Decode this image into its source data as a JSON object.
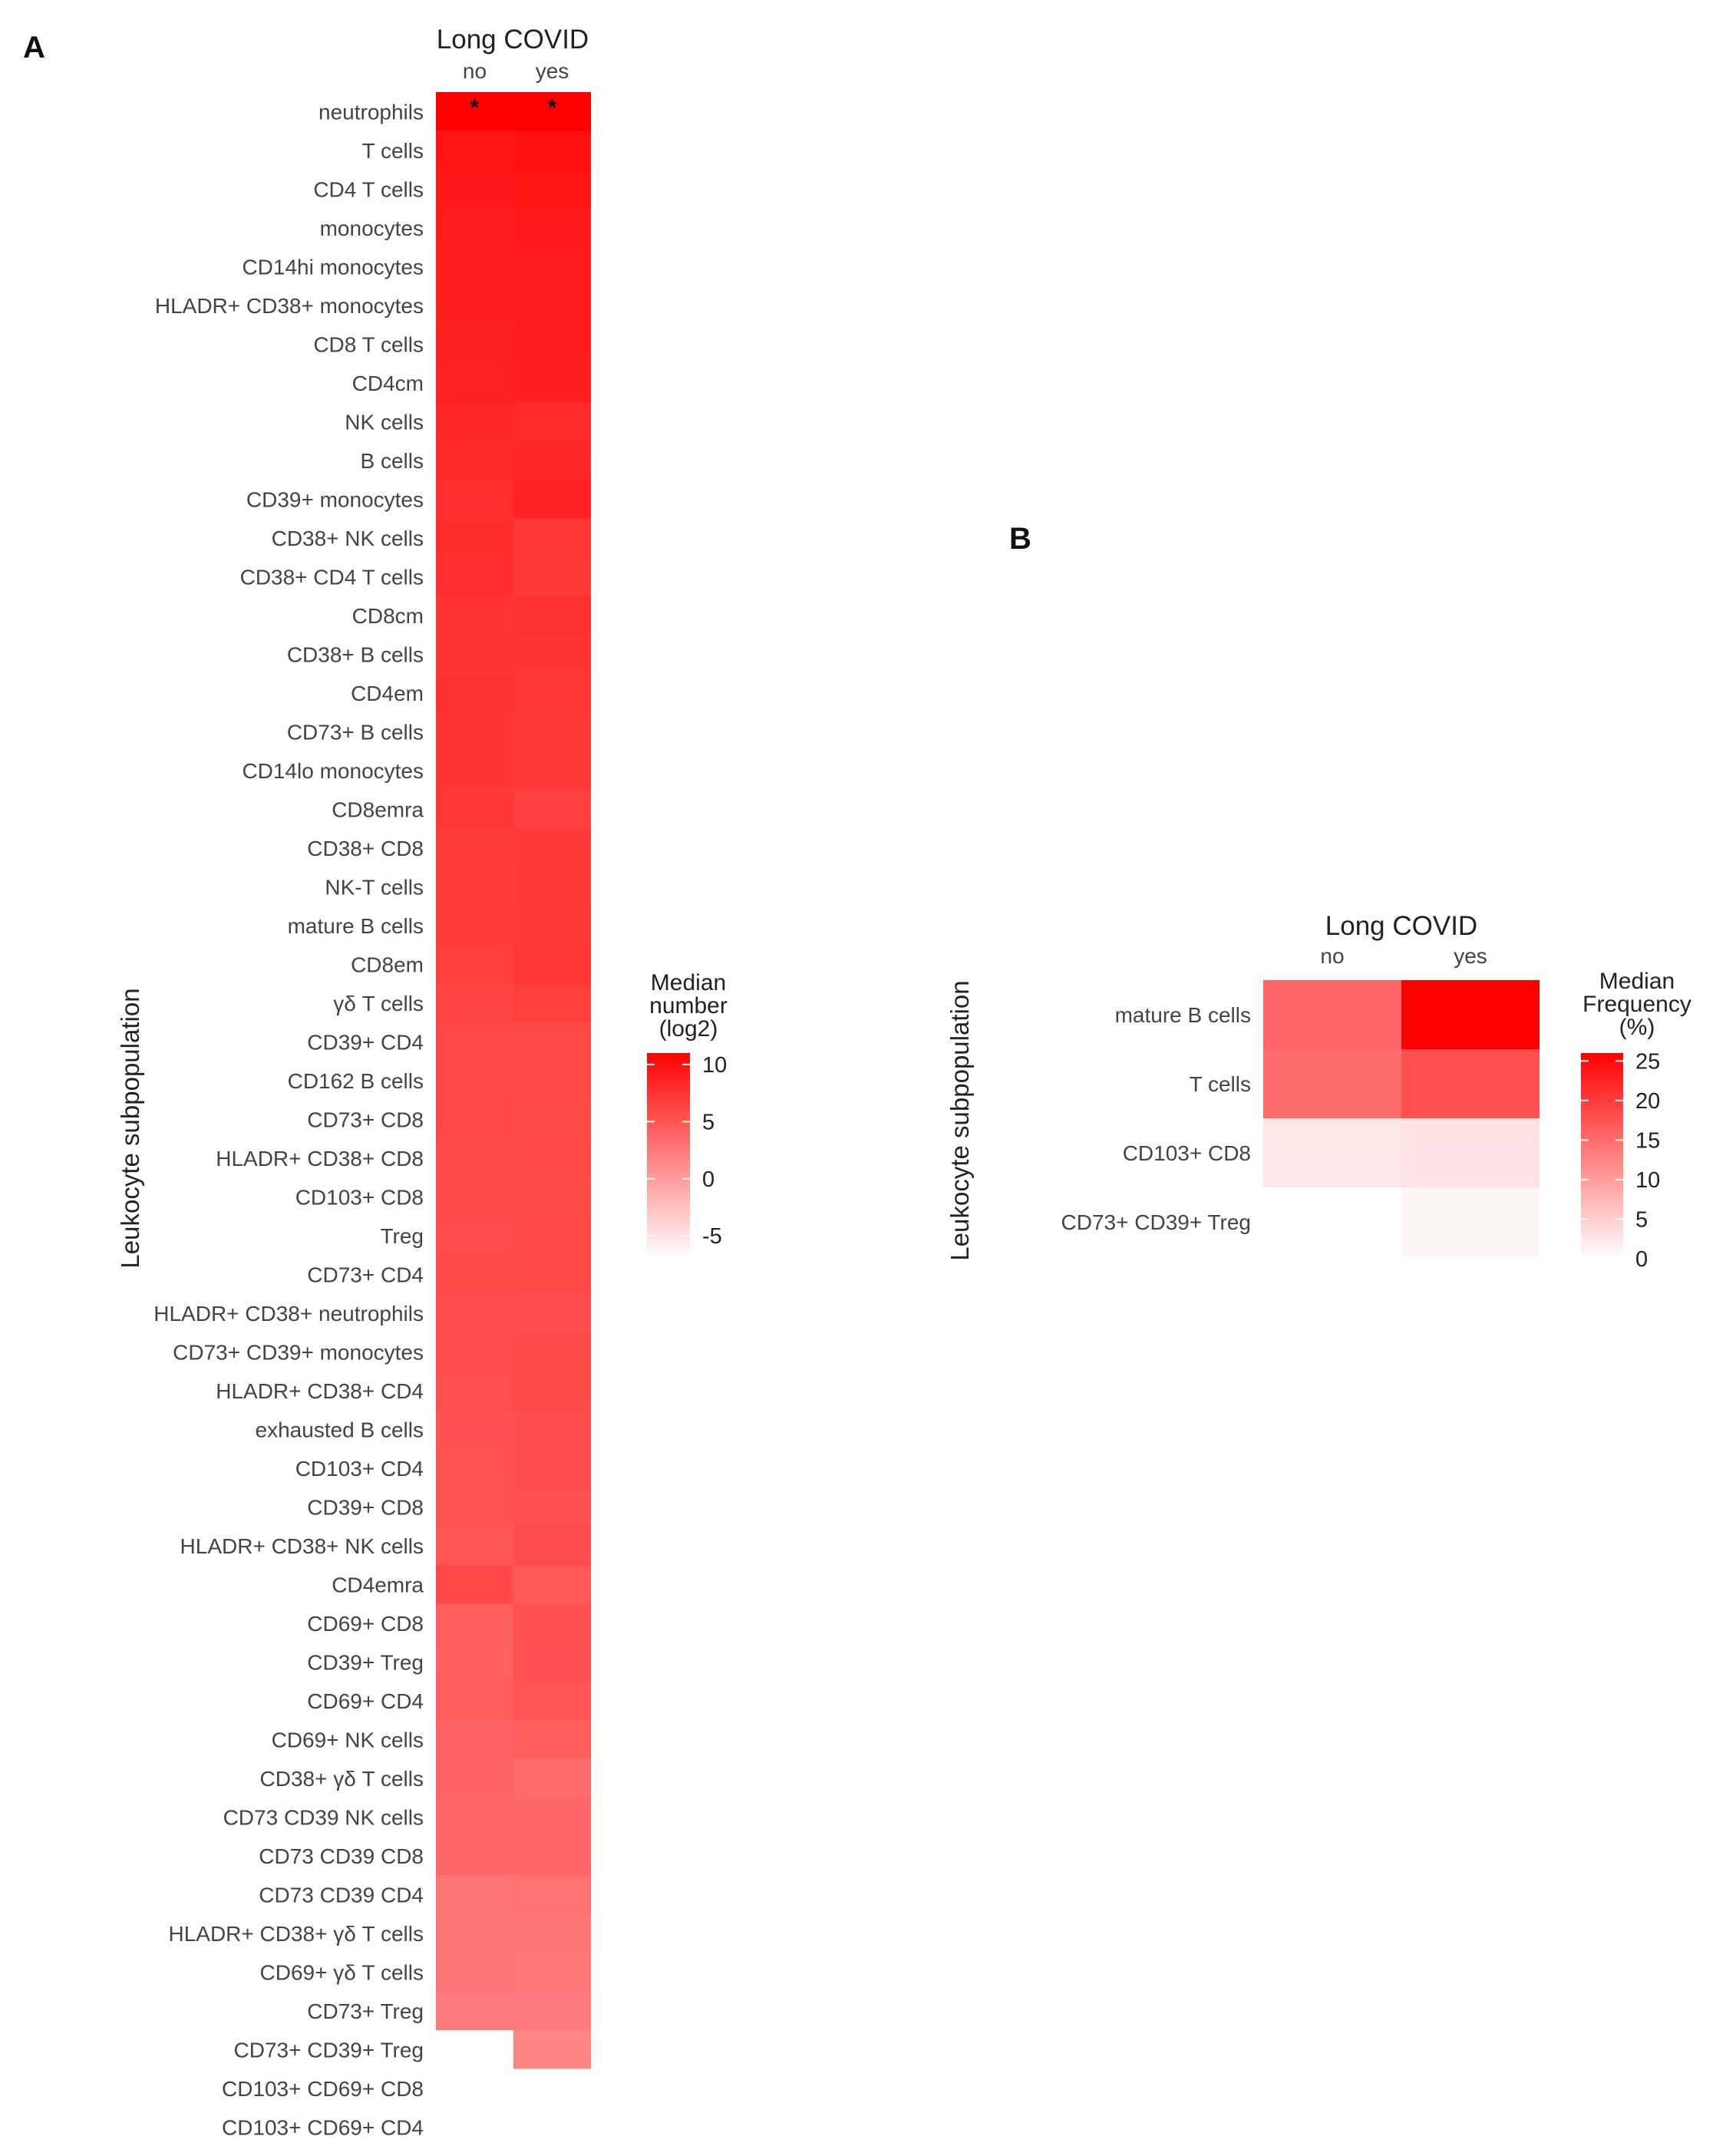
{
  "colors": {
    "low": "#ffffff",
    "high": "#ff0000"
  },
  "chart_data": [
    {
      "type": "heatmap",
      "panel": "A",
      "title": "Long COVID",
      "columns": [
        "no",
        "yes"
      ],
      "ylabel": "Leukocyte subpopulation",
      "legend": {
        "title": [
          "Median",
          "number",
          "(log2)"
        ],
        "min": -7,
        "max": 11,
        "ticks": [
          "10",
          "5",
          "0",
          "-5"
        ],
        "tick_values": [
          10,
          5,
          0,
          -5
        ]
      },
      "significance": [
        [
          "*",
          "*"
        ]
      ],
      "rows": [
        "neutrophils",
        "T cells",
        "CD4 T cells",
        "monocytes",
        "CD14hi monocytes",
        "HLADR+ CD38+ monocytes",
        "CD8 T cells",
        "CD4cm",
        "NK cells",
        "B cells",
        "CD39+ monocytes",
        "CD38+ NK cells",
        "CD38+ CD4 T cells",
        "CD8cm",
        "CD38+ B cells",
        "CD4em",
        "CD73+ B cells",
        "CD14lo monocytes",
        "CD8emra",
        "CD38+ CD8",
        "NK-T cells",
        "mature B cells",
        "CD8em",
        "γδ T cells",
        "CD39+ CD4",
        "CD162 B cells",
        "CD73+ CD8",
        "HLADR+ CD38+ CD8",
        "CD103+ CD8",
        "Treg",
        "CD73+ CD4",
        "HLADR+ CD38+ neutrophils",
        "CD73+ CD39+ monocytes",
        "HLADR+ CD38+ CD4",
        "exhausted B cells",
        "CD103+ CD4",
        "CD39+ CD8",
        "HLADR+ CD38+ NK cells",
        "CD4emra",
        "CD69+ CD8",
        "CD39+ Treg",
        "CD69+ CD4",
        "CD69+ NK cells",
        "CD38+ γδ T cells",
        "CD73 CD39 NK cells",
        "CD73 CD39 CD8",
        "CD73 CD39 CD4",
        "HLADR+ CD38+ γδ T cells",
        "CD69+ γδ T cells",
        "CD73+ Treg",
        "CD73+ CD39+ Treg",
        "CD103+ CD69+ CD8",
        "CD103+ CD69+ CD4"
      ],
      "values": [
        [
          11.2,
          11.2
        ],
        [
          9.6,
          9.8
        ],
        [
          9.3,
          9.6
        ],
        [
          9.0,
          9.2
        ],
        [
          8.9,
          9.0
        ],
        [
          8.8,
          8.9
        ],
        [
          8.7,
          8.9
        ],
        [
          8.6,
          8.8
        ],
        [
          8.3,
          8.0
        ],
        [
          8.2,
          8.3
        ],
        [
          7.8,
          8.5
        ],
        [
          7.9,
          7.2
        ],
        [
          7.8,
          7.0
        ],
        [
          7.4,
          7.6
        ],
        [
          7.3,
          7.3
        ],
        [
          7.5,
          7.2
        ],
        [
          7.3,
          7.0
        ],
        [
          7.3,
          7.0
        ],
        [
          7.2,
          6.5
        ],
        [
          6.7,
          6.9
        ],
        [
          6.8,
          6.9
        ],
        [
          6.8,
          7.0
        ],
        [
          6.6,
          7.1
        ],
        [
          6.2,
          6.6
        ],
        [
          6.0,
          5.9
        ],
        [
          6.0,
          5.9
        ],
        [
          6.0,
          5.8
        ],
        [
          5.8,
          5.9
        ],
        [
          5.8,
          5.8
        ],
        [
          5.7,
          5.9
        ],
        [
          5.8,
          5.9
        ],
        [
          5.7,
          5.6
        ],
        [
          5.6,
          5.8
        ],
        [
          5.5,
          5.8
        ],
        [
          5.3,
          5.7
        ],
        [
          5.2,
          5.6
        ],
        [
          5.2,
          5.5
        ],
        [
          5.0,
          5.7
        ],
        [
          5.9,
          4.8
        ],
        [
          4.4,
          5.4
        ],
        [
          4.3,
          5.3
        ],
        [
          4.4,
          5.0
        ],
        [
          4.1,
          4.4
        ],
        [
          4.0,
          3.5
        ],
        [
          3.8,
          3.7
        ],
        [
          3.8,
          3.8
        ],
        [
          2.9,
          3.0
        ],
        [
          2.8,
          2.8
        ],
        [
          2.8,
          2.7
        ],
        [
          2.4,
          2.3
        ],
        [
          null,
          1.6
        ],
        [
          null,
          null
        ],
        [
          null,
          null
        ]
      ]
    },
    {
      "type": "heatmap",
      "panel": "B",
      "title": "Long COVID",
      "columns": [
        "no",
        "yes"
      ],
      "ylabel": "Leukocyte subpopulation",
      "legend": {
        "title": [
          "Median",
          "Frequency",
          "(%)"
        ],
        "min": 0,
        "max": 26,
        "ticks": [
          "25",
          "20",
          "15",
          "10",
          "5",
          "0"
        ],
        "tick_values": [
          25,
          20,
          15,
          10,
          5,
          0
        ]
      },
      "rows": [
        "mature B cells",
        "T cells",
        "CD103+ CD8",
        "CD73+ CD39+ Treg"
      ],
      "values": [
        [
          15.5,
          26.0
        ],
        [
          15.0,
          18.0
        ],
        [
          2.5,
          3.0
        ],
        [
          null,
          1.0
        ]
      ]
    }
  ]
}
